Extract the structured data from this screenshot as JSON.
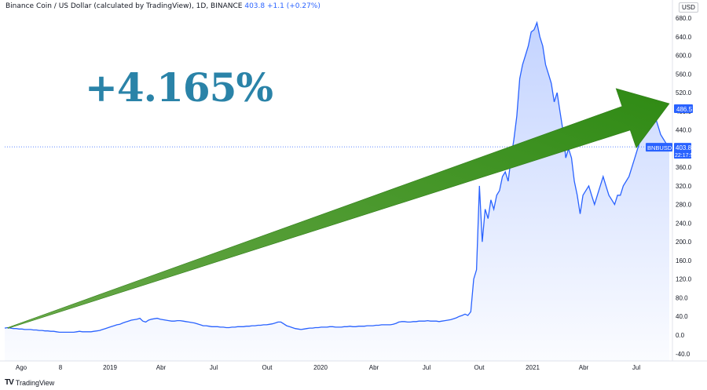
{
  "header": {
    "symbol_text": "Binance Coin / US Dollar (calculated by TradingView), 1D, BINANCE",
    "last": "403.8",
    "change": "+1.1 (+0.27%)"
  },
  "overlay_text": "+4.165%",
  "currency_badge": "USD",
  "footer": {
    "logo": "TV",
    "brand": "TradingView"
  },
  "colors": {
    "line": "#2962ff",
    "arrow": "#3a8b1f",
    "pct_text": "#2a83a8",
    "badge_blue": "#2962ff"
  },
  "chart_data": {
    "type": "area",
    "title": "Binance Coin / US Dollar (calculated by TradingView), 1D, BINANCE",
    "ylabel": "",
    "ylim": [
      -40,
      700
    ],
    "y_ticks": [
      -40.0,
      0.0,
      40.0,
      80.0,
      120.0,
      160.0,
      200.0,
      240.0,
      280.0,
      320.0,
      360.0,
      400.0,
      440.0,
      480.0,
      520.0,
      560.0,
      600.0,
      640.0,
      680.0
    ],
    "x_tick_labels": [
      "Ago",
      "8",
      "2019",
      "Abr",
      "Jul",
      "Out",
      "2020",
      "Abr",
      "Jul",
      "Out",
      "2021",
      "Abr",
      "Jul"
    ],
    "series": [
      {
        "values": [
          15,
          16,
          15,
          14,
          14,
          13,
          13,
          12,
          12,
          12,
          11,
          11,
          10,
          10,
          9,
          9,
          8,
          8,
          7,
          6,
          6,
          6,
          6,
          6,
          6,
          7,
          8,
          7,
          7,
          7,
          7,
          8,
          9,
          10,
          12,
          14,
          16,
          18,
          20,
          22,
          23,
          26,
          28,
          30,
          32,
          33,
          34,
          36,
          30,
          28,
          32,
          34,
          35,
          36,
          34,
          33,
          32,
          31,
          30,
          30,
          31,
          31,
          30,
          29,
          28,
          27,
          26,
          24,
          22,
          20,
          20,
          19,
          18,
          18,
          18,
          17,
          17,
          16,
          16,
          17,
          17,
          18,
          18,
          18,
          19,
          19,
          20,
          20,
          21,
          21,
          22,
          22,
          23,
          24,
          26,
          28,
          28,
          24,
          20,
          18,
          16,
          14,
          13,
          12,
          13,
          14,
          15,
          15,
          16,
          16,
          17,
          17,
          17,
          18,
          18,
          17,
          17,
          17,
          18,
          18,
          19,
          18,
          18,
          19,
          19,
          19,
          20,
          20,
          20,
          21,
          21,
          22,
          22,
          22,
          22,
          23,
          25,
          28,
          29,
          29,
          28,
          28,
          29,
          29,
          30,
          30,
          30,
          31,
          30,
          30,
          30,
          29,
          30,
          31,
          32,
          33,
          35,
          37,
          40,
          42,
          45,
          42,
          50,
          120,
          140,
          320,
          200,
          270,
          250,
          290,
          270,
          300,
          310,
          340,
          350,
          330,
          380,
          420,
          470,
          550,
          580,
          600,
          620,
          650,
          655,
          670,
          640,
          620,
          580,
          560,
          540,
          500,
          520,
          480,
          440,
          380,
          400,
          380,
          330,
          300,
          260,
          300,
          310,
          320,
          300,
          280,
          300,
          320,
          340,
          320,
          300,
          290,
          280,
          300,
          300,
          320,
          330,
          340,
          360,
          380,
          400,
          420,
          440,
          470,
          480,
          486.5,
          470,
          450,
          430,
          420,
          410,
          403.8
        ],
        "last_value": 403.8,
        "last_high_label": 486.5
      }
    ],
    "markers": [
      {
        "label": "486.5",
        "value": 486.5
      },
      {
        "label": "BNBUSD",
        "value": 403.8
      },
      {
        "label": "403.8",
        "value": 403.8
      },
      {
        "label": "22:17:57",
        "value": null
      }
    ]
  }
}
